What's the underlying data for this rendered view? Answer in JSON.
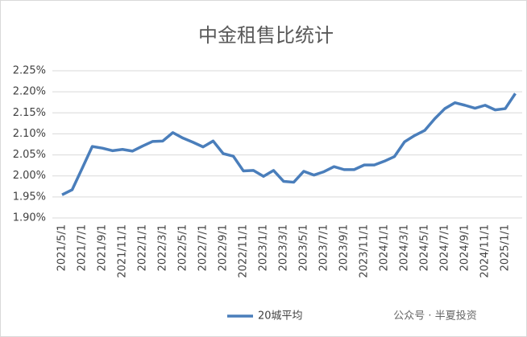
{
  "chart_data": {
    "type": "line",
    "title": "中金租售比统计",
    "categories": [
      "2021/5/1",
      null,
      "2021/7/1",
      null,
      "2021/9/1",
      null,
      "2021/11/1",
      null,
      "2022/1/1",
      null,
      "2022/3/1",
      null,
      "2022/5/1",
      null,
      "2022/7/1",
      null,
      "2022/9/1",
      null,
      "2022/11/1",
      null,
      "2023/1/1",
      null,
      "2023/3/1",
      null,
      "2023/5/1",
      null,
      "2023/7/1",
      null,
      "2023/9/1",
      null,
      "2023/11/1",
      null,
      "2024/1/1",
      null,
      "2024/3/1",
      null,
      "2024/5/1",
      null,
      "2024/7/1",
      null,
      "2024/9/1",
      null,
      "2024/11/1",
      null,
      "2025/1/1",
      null
    ],
    "series": [
      {
        "name": "20城平均",
        "color": "#4a7ebb",
        "values": [
          1.955,
          1.967,
          2.018,
          2.07,
          2.066,
          2.06,
          2.063,
          2.059,
          2.071,
          2.082,
          2.083,
          2.103,
          2.09,
          2.08,
          2.069,
          2.083,
          2.053,
          2.047,
          2.012,
          2.013,
          1.999,
          2.013,
          1.987,
          1.985,
          2.011,
          2.002,
          2.01,
          2.022,
          2.015,
          2.015,
          2.026,
          2.026,
          2.035,
          2.046,
          2.081,
          2.096,
          2.108,
          2.136,
          2.16,
          2.174,
          2.168,
          2.161,
          2.168,
          2.157,
          2.16,
          2.196
        ]
      }
    ],
    "ylim": [
      1.9,
      2.25
    ],
    "yticks": [
      {
        "value": 1.9,
        "label": "1.90%"
      },
      {
        "value": 1.95,
        "label": "1.95%"
      },
      {
        "value": 2.0,
        "label": "2.00%"
      },
      {
        "value": 2.05,
        "label": "2.05%"
      },
      {
        "value": 2.1,
        "label": "2.10%"
      },
      {
        "value": 2.15,
        "label": "2.15%"
      },
      {
        "value": 2.2,
        "label": "2.20%"
      },
      {
        "value": 2.25,
        "label": "2.25%"
      }
    ],
    "grid": true,
    "legend": "bottom",
    "watermark": "公众号 · 半夏投资"
  }
}
